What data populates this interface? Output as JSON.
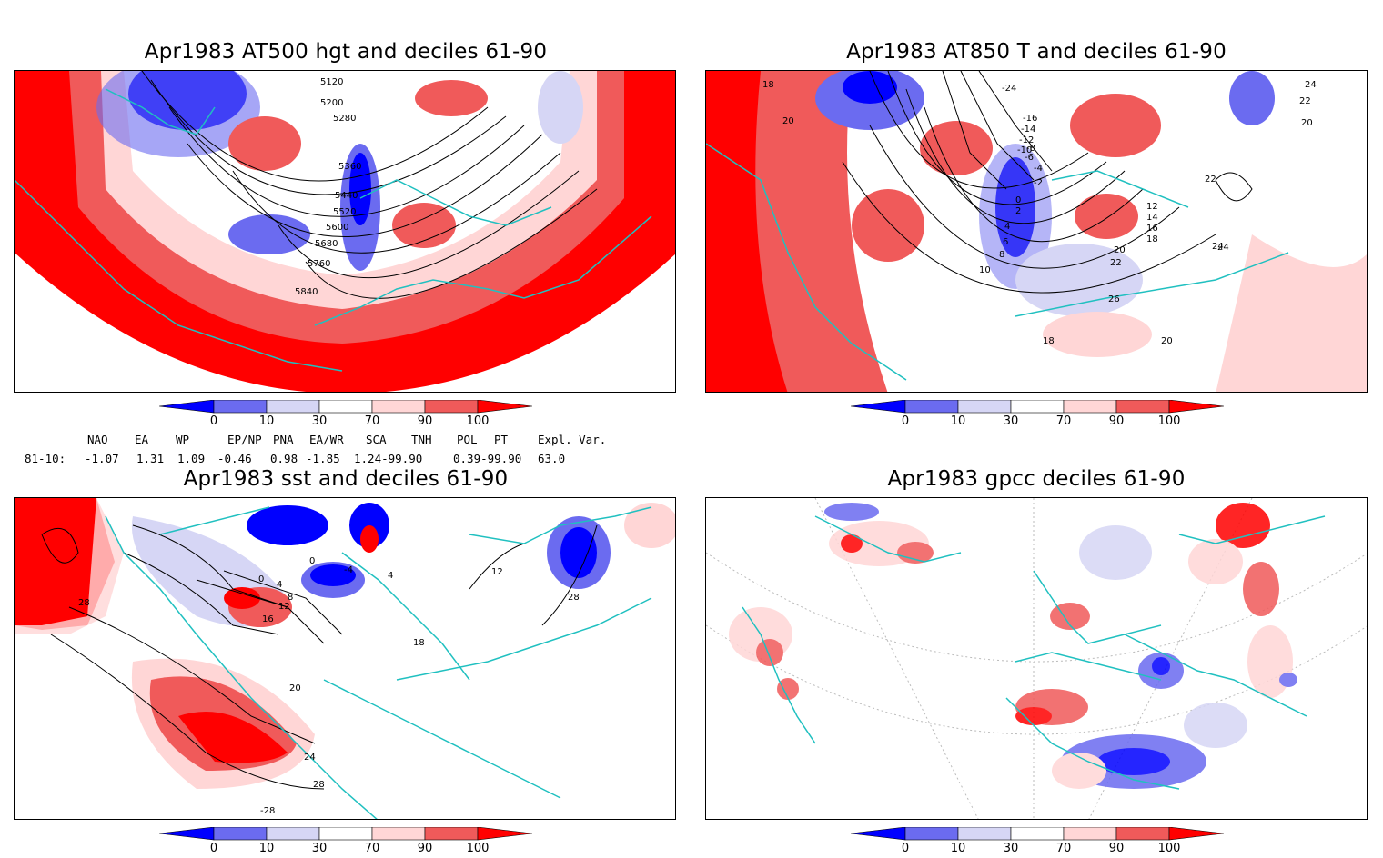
{
  "panels": {
    "p1": {
      "title": "Apr1983 AT500 hgt and deciles 61-90",
      "contour_labels": [
        "5120",
        "5200",
        "5280",
        "5360",
        "5440",
        "5520",
        "5600",
        "5680",
        "5760",
        "5840"
      ]
    },
    "p2": {
      "title": "Apr1983 AT850 T and deciles 61-90",
      "contour_labels": [
        "-24",
        "-16",
        "-14",
        "-12",
        "-10",
        "-8",
        "-6",
        "-4",
        "-2",
        "0",
        "2",
        "4",
        "6",
        "8",
        "10",
        "12",
        "14",
        "16",
        "18",
        "20",
        "22",
        "24",
        "26",
        "18",
        "20",
        "22",
        "24",
        "20",
        "22",
        "24",
        "18",
        "20"
      ]
    },
    "p3": {
      "title": "Apr1983 sst and deciles 61-90",
      "contour_labels": [
        "28",
        "0",
        "4",
        "8",
        "12",
        "16",
        "0",
        "-4",
        "4",
        "12",
        "18",
        "20",
        "24",
        "28",
        "-28",
        "28"
      ]
    },
    "p4": {
      "title": "Apr1983 gpcc deciles 61-90"
    }
  },
  "colorbar": {
    "tick_labels": [
      "0",
      "10",
      "30",
      "70",
      "90",
      "100"
    ],
    "colors": [
      "#0000ff",
      "#6b6bf0",
      "#d6d6f5",
      "#ffffff",
      "#ffd6d6",
      "#f05a5a",
      "#ff0000"
    ]
  },
  "indices": {
    "headers": [
      "NAO",
      "EA",
      "WP",
      "EP/NP",
      "PNA",
      "EA/WR",
      "SCA",
      "TNH",
      "POL",
      "PT",
      "Expl. Var."
    ],
    "row_label": "81-10:",
    "values": [
      "-1.07",
      "1.31",
      "1.09",
      "-0.46",
      "0.98",
      "-1.85",
      "1.24-99.90",
      "",
      "0.39-99.90",
      "",
      "63.0"
    ]
  }
}
